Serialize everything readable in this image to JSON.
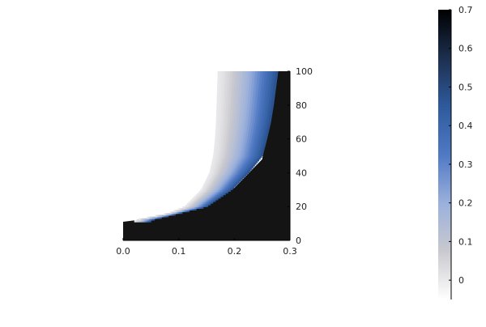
{
  "chart_data": {
    "type": "heatmap",
    "title": "",
    "xlabel": "",
    "ylabel": "",
    "xlim": [
      0.0,
      0.3
    ],
    "ylim": [
      0,
      100
    ],
    "x_ticks": [
      0.0,
      0.1,
      0.2,
      0.3
    ],
    "x_tick_labels": [
      "0.0",
      "0.1",
      "0.2",
      "0.3"
    ],
    "y_ticks": [
      0,
      20,
      40,
      60,
      80,
      100
    ],
    "y_tick_labels": [
      "0",
      "20",
      "40",
      "60",
      "80",
      "100"
    ],
    "y_axis_side": "right",
    "grid": false,
    "colorbar": {
      "min": -0.05,
      "max": 0.7,
      "ticks": [
        0,
        0.1,
        0.2,
        0.3,
        0.4,
        0.5,
        0.6,
        0.7
      ],
      "tick_labels": [
        "0",
        "0.1",
        "0.2",
        "0.3",
        "0.4",
        "0.5",
        "0.6",
        "0.7"
      ],
      "colors": [
        "#ffffff",
        "#c9c9cf",
        "#9ab0dc",
        "#4f79c4",
        "#2e5a9c",
        "#1c2f4f",
        "#000000"
      ]
    },
    "regions": [
      {
        "region": "upper-left",
        "value": -0.05
      },
      {
        "region": "lower-right",
        "value": 0.7
      }
    ],
    "boundary_curve": [
      {
        "x": 0.0,
        "y": 11
      },
      {
        "x": 0.05,
        "y": 13
      },
      {
        "x": 0.1,
        "y": 16
      },
      {
        "x": 0.15,
        "y": 23
      },
      {
        "x": 0.2,
        "y": 31
      },
      {
        "x": 0.25,
        "y": 48
      },
      {
        "x": 0.275,
        "y": 92
      }
    ],
    "gradient_band": [
      {
        "y": 12,
        "x_start": 0.02,
        "x_end": 0.05
      },
      {
        "y": 16,
        "x_start": 0.08,
        "x_end": 0.1
      },
      {
        "y": 20,
        "x_start": 0.11,
        "x_end": 0.15
      },
      {
        "y": 30,
        "x_start": 0.14,
        "x_end": 0.195
      },
      {
        "y": 40,
        "x_start": 0.155,
        "x_end": 0.225
      },
      {
        "y": 50,
        "x_start": 0.162,
        "x_end": 0.25
      },
      {
        "y": 60,
        "x_start": 0.165,
        "x_end": 0.258
      },
      {
        "y": 70,
        "x_start": 0.167,
        "x_end": 0.265
      },
      {
        "y": 80,
        "x_start": 0.168,
        "x_end": 0.27
      },
      {
        "y": 90,
        "x_start": 0.169,
        "x_end": 0.274
      },
      {
        "y": 100,
        "x_start": 0.17,
        "x_end": 0.278
      }
    ]
  }
}
